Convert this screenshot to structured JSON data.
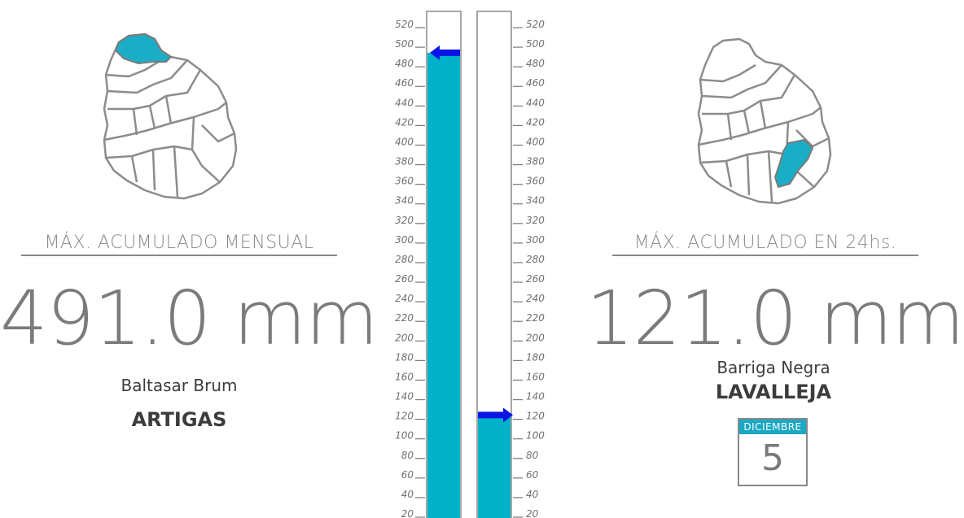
{
  "left": {
    "title": "MÁX. ACUMULADO MENSUAL",
    "value": "491.0 mm",
    "station": "Baltasar Brum",
    "department": "ARTIGAS",
    "highlight_color": "#1aaec6"
  },
  "right": {
    "title": "MÁX. ACUMULADO EN 24hs.",
    "value": "121.0 mm",
    "station": "Barriga Negra",
    "department": "LAVALLEJA",
    "highlight_color": "#1aaec6",
    "calendar": {
      "month": "DICIEMBRE",
      "day": "5"
    }
  },
  "chart_data": {
    "type": "bar",
    "categories": [
      "MÁX. ACUMULADO MENSUAL",
      "MÁX. ACUMULADO EN 24hs."
    ],
    "values": [
      491.0,
      121.0
    ],
    "ylim": [
      0,
      530
    ],
    "y_ticks": [
      20,
      40,
      60,
      80,
      100,
      120,
      140,
      160,
      180,
      200,
      220,
      240,
      260,
      280,
      300,
      320,
      340,
      360,
      380,
      400,
      420,
      440,
      460,
      480,
      500,
      520
    ],
    "bar_color": "#00b2c9",
    "marker_color": "#0a14e6",
    "marker_directions": [
      "left",
      "right"
    ]
  }
}
